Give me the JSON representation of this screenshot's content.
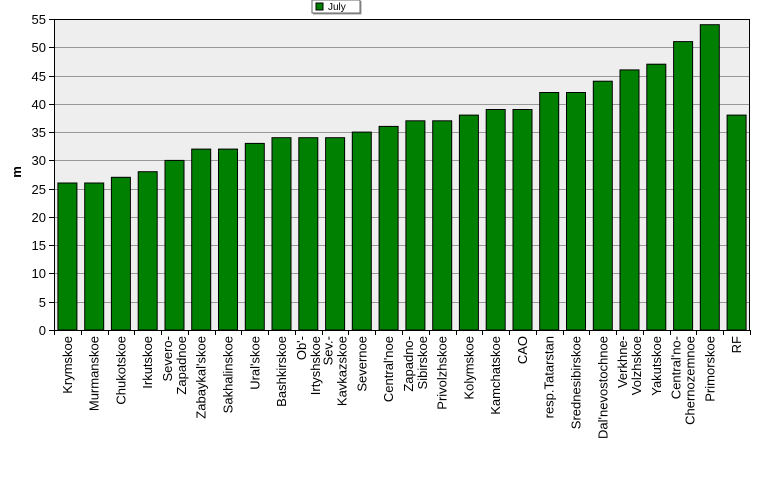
{
  "chart_data": {
    "type": "bar",
    "ylabel": "m",
    "xlabel": "",
    "ylim": [
      0,
      55
    ],
    "yticks": [
      0,
      5,
      10,
      15,
      20,
      25,
      30,
      35,
      40,
      45,
      50,
      55
    ],
    "grid": true,
    "legend_position": "top-center",
    "categories": [
      "Krymskoe",
      "Murmanskoe",
      "Chukotskoe",
      "Irkutskoe",
      "Severo-\nZapadnoe",
      "Zabaykal'skoe",
      "Sakhalinskoe",
      "Ural'skoe",
      "Bashkirskoe",
      "Ob'-\nIrtyshskoe",
      "Sev.-\nKavkazskoe",
      "Severnoe",
      "Central'noe",
      "Zapadno-\nSibirskoe",
      "Privolzhskoe",
      "Kolymskoe",
      "Kamchatskoe",
      "CAO",
      "resp.Tatarstan",
      "Srednesibirskoe",
      "Dal'nevostochnoe",
      "Verkhne-\nVolzhskoe",
      "Yakutskoe",
      "Central'no-\nChernozemnoe",
      "Primorskoe",
      "RF"
    ],
    "series": [
      {
        "name": "July",
        "color": "#008000",
        "values": [
          26,
          26,
          27,
          28,
          30,
          32,
          32,
          33,
          34,
          34,
          34,
          35,
          36,
          37,
          37,
          38,
          39,
          39,
          42,
          42,
          44,
          46,
          47,
          51,
          54,
          38
        ]
      }
    ]
  }
}
